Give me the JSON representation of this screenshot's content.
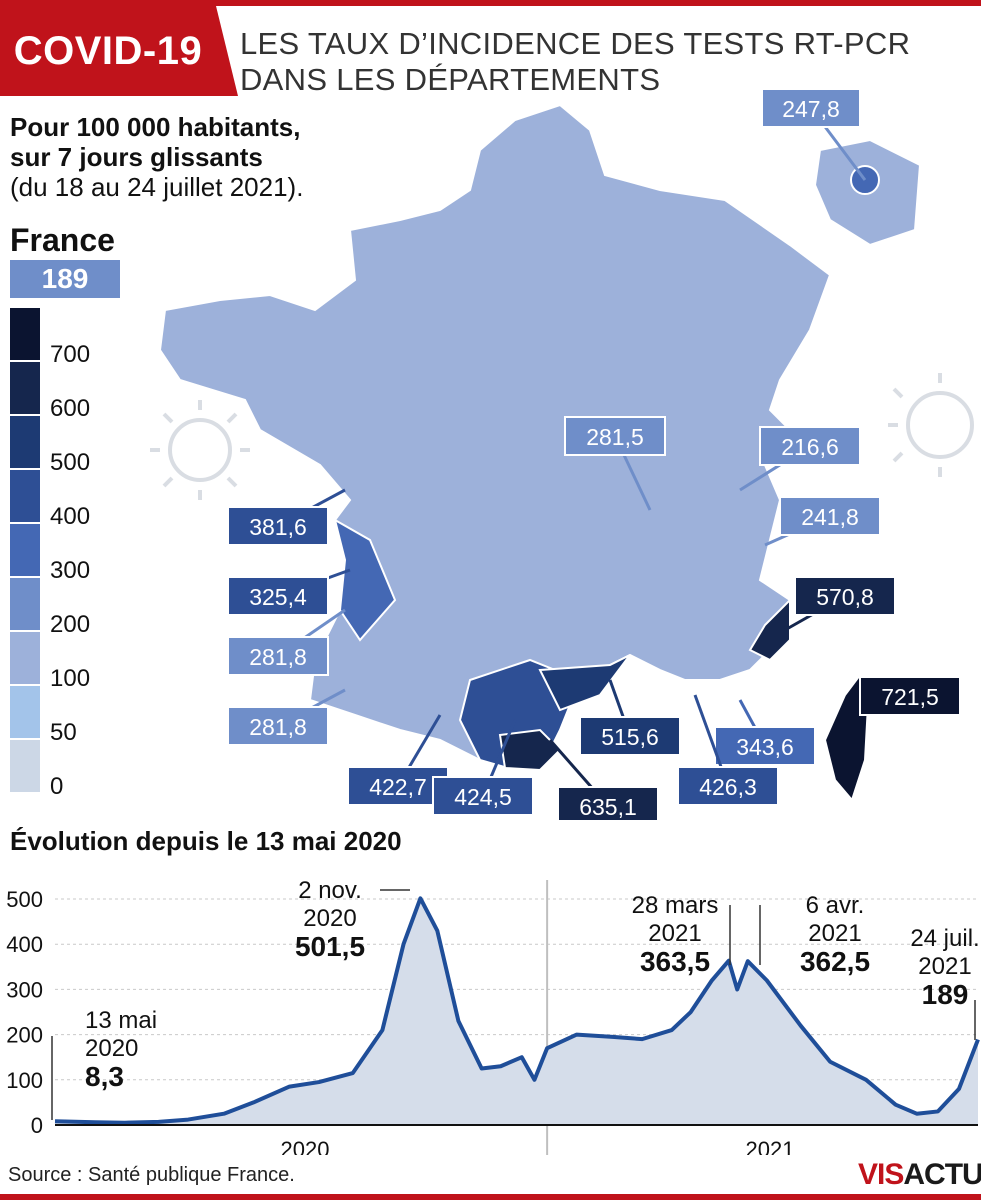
{
  "header": {
    "tag": "COVID-19",
    "title_line1": "LES TAUX D’INCIDENCE DES TESTS RT-PCR",
    "title_line2": "DANS LES DÉPARTEMENTS"
  },
  "subtitle": {
    "line1": "Pour 100 000 habitants,",
    "line2": "sur 7 jours glissants",
    "line3": "(du 18 au 24 juillet 2021)."
  },
  "france": {
    "label": "France",
    "value": "189"
  },
  "legend": {
    "ticks": [
      "700",
      "600",
      "500",
      "400",
      "300",
      "200",
      "100",
      "50",
      "0"
    ],
    "colors": [
      "#0b1430",
      "#15264d",
      "#1d3a73",
      "#2e4f95",
      "#4468b4",
      "#6f8ec9",
      "#9db1da",
      "#a3c4ea",
      "#ccd7e6"
    ]
  },
  "map_callouts": [
    {
      "value": "247,8",
      "color": "#6f8ec9"
    },
    {
      "value": "281,5",
      "color": "#6f8ec9"
    },
    {
      "value": "216,6",
      "color": "#6f8ec9"
    },
    {
      "value": "241,8",
      "color": "#6f8ec9"
    },
    {
      "value": "381,6",
      "color": "#2e4f95"
    },
    {
      "value": "325,4",
      "color": "#2e4f95"
    },
    {
      "value": "281,8",
      "color": "#6f8ec9"
    },
    {
      "value": "281,8",
      "color": "#6f8ec9"
    },
    {
      "value": "570,8",
      "color": "#15264d"
    },
    {
      "value": "721,5",
      "color": "#0b1430"
    },
    {
      "value": "515,6",
      "color": "#1d3a73"
    },
    {
      "value": "343,6",
      "color": "#4468b4"
    },
    {
      "value": "426,3",
      "color": "#2e4f95"
    },
    {
      "value": "422,7",
      "color": "#2e4f95"
    },
    {
      "value": "424,5",
      "color": "#2e4f95"
    },
    {
      "value": "635,1",
      "color": "#15264d"
    }
  ],
  "chart_title": "Évolution depuis le 13 mai 2020",
  "chart_data": {
    "type": "area",
    "x": [
      "2020-05-13",
      "2020-06-01",
      "2020-06-15",
      "2020-07-01",
      "2020-07-15",
      "2020-08-01",
      "2020-08-15",
      "2020-09-01",
      "2020-09-15",
      "2020-10-01",
      "2020-10-15",
      "2020-10-25",
      "2020-11-02",
      "2020-11-10",
      "2020-11-20",
      "2020-12-01",
      "2020-12-10",
      "2020-12-20",
      "2020-12-26",
      "2021-01-01",
      "2021-01-15",
      "2021-02-01",
      "2021-02-15",
      "2021-03-01",
      "2021-03-10",
      "2021-03-20",
      "2021-03-28",
      "2021-04-01",
      "2021-04-06",
      "2021-04-15",
      "2021-05-01",
      "2021-05-15",
      "2021-06-01",
      "2021-06-15",
      "2021-06-25",
      "2021-07-05",
      "2021-07-15",
      "2021-07-24"
    ],
    "values": [
      8.3,
      6,
      5,
      7,
      12,
      25,
      50,
      85,
      95,
      115,
      210,
      400,
      501.5,
      430,
      230,
      125,
      130,
      150,
      100,
      170,
      200,
      195,
      190,
      210,
      250,
      320,
      363.5,
      300,
      362.5,
      320,
      220,
      140,
      100,
      45,
      25,
      30,
      80,
      189
    ],
    "yticks": [
      0,
      100,
      200,
      300,
      400,
      500
    ],
    "ylim": [
      0,
      520
    ],
    "xticks": [
      "2020",
      "2021"
    ],
    "grid": true,
    "annotations": [
      {
        "date_line1": "13 mai",
        "date_line2": "2020",
        "value": "8,3"
      },
      {
        "date_line1": "2 nov.",
        "date_line2": "2020",
        "value": "501,5"
      },
      {
        "date_line1": "28 mars",
        "date_line2": "2021",
        "value": "363,5"
      },
      {
        "date_line1": "6 avr.",
        "date_line2": "2021",
        "value": "362,5"
      },
      {
        "date_line1": "24 juil.",
        "date_line2": "2021",
        "value": "189"
      }
    ],
    "line_color": "#1f4e99",
    "fill_color": "#d5ddea"
  },
  "source": "Source : Santé publique France.",
  "logo": {
    "part1": "VIS",
    "part2": "ACTU"
  },
  "colors": {
    "accent": "#c0131b",
    "france_box": "#6f8ec9",
    "map_fill": "#9db1da",
    "map_stroke": "#ffffff"
  }
}
